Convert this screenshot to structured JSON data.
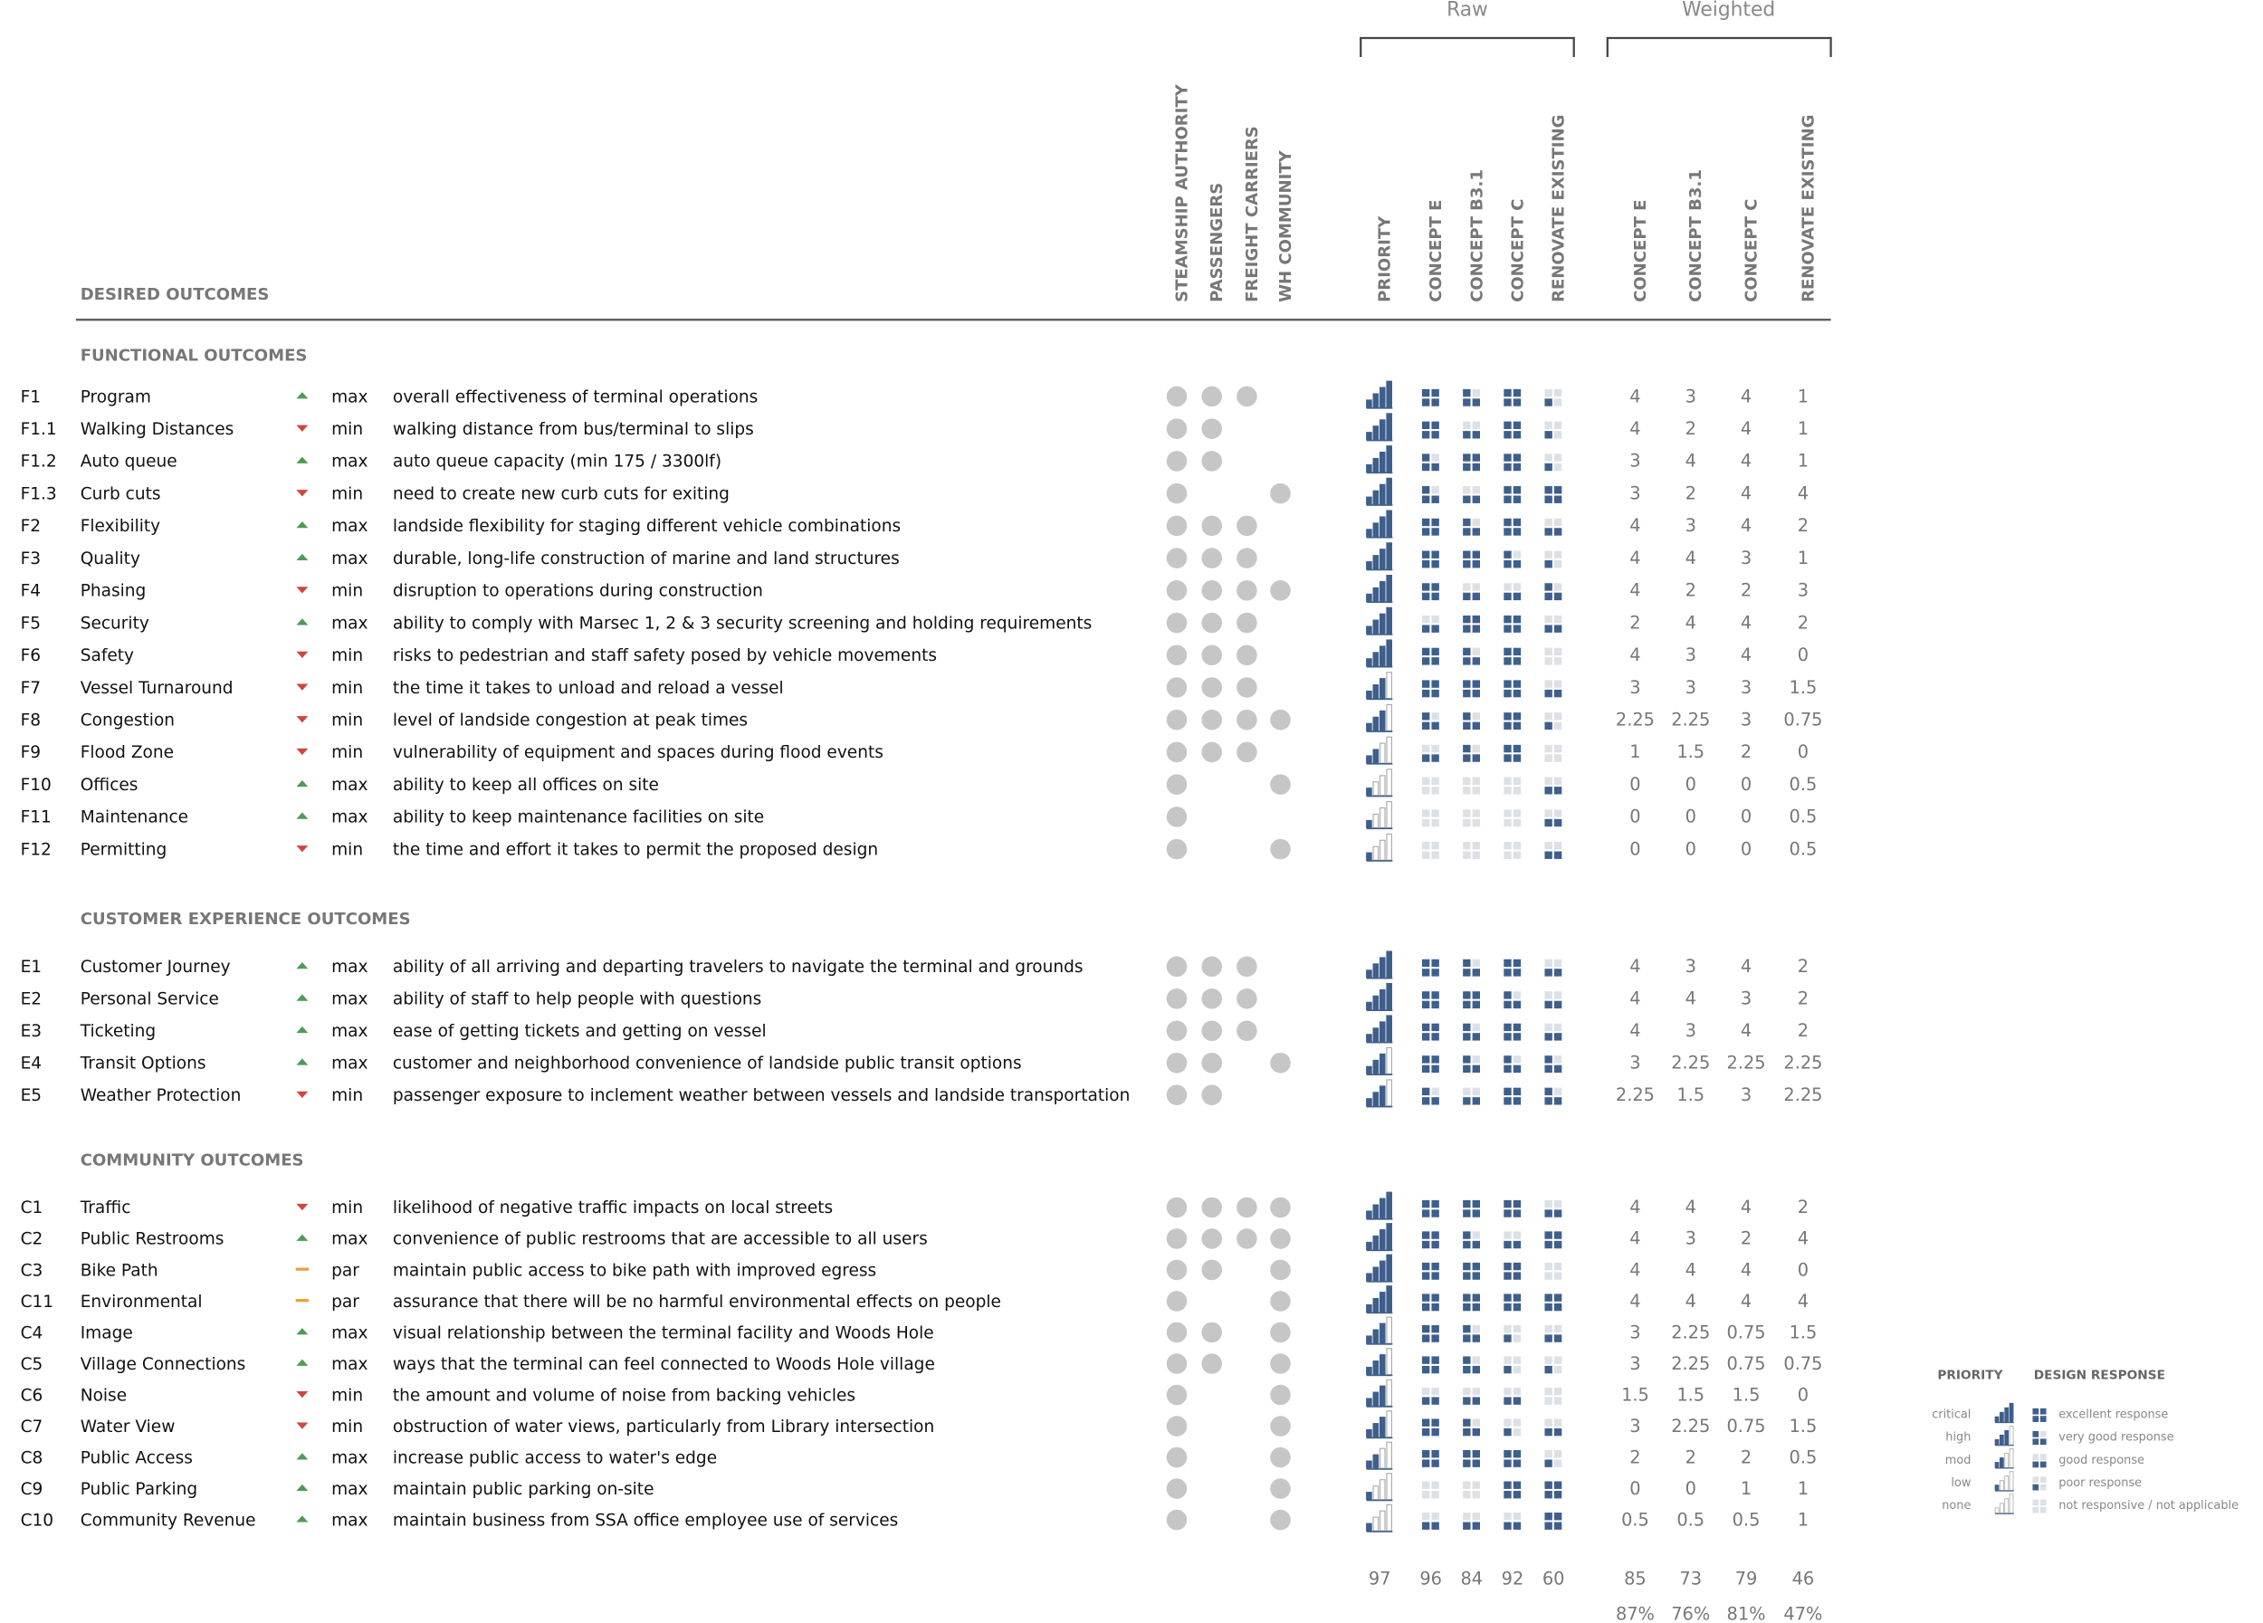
{
  "header": {
    "title": "DESIRED OUTCOMES",
    "raw_label": "Raw",
    "weighted_label": "Weighted",
    "stakeholders": [
      "STEAMSHIP AUTHORITY",
      "PASSENGERS",
      "FREIGHT CARRIERS",
      "WH COMMUNITY"
    ],
    "raw_columns": [
      "PRIORITY",
      "CONCEPT E",
      "CONCEPT B3.1",
      "CONCEPT C",
      "RENOVATE EXISTING"
    ],
    "weighted_columns": [
      "CONCEPT E",
      "CONCEPT B3.1",
      "CONCEPT C",
      "RENOVATE EXISTING"
    ]
  },
  "groups": [
    {
      "title": "FUNCTIONAL OUTCOMES",
      "rows": [
        {
          "id": "F1",
          "name": "Program",
          "arrow": "up",
          "direction": "max",
          "description": "overall effectiveness of terminal operations",
          "stakeholders": [
            true,
            true,
            true,
            false
          ],
          "priority": 4,
          "responses": [
            4,
            3,
            4,
            1
          ],
          "weighted": [
            4,
            3,
            4,
            1
          ]
        },
        {
          "id": "F1.1",
          "name": "Walking Distances",
          "arrow": "down",
          "direction": "min",
          "description": "walking distance from bus/terminal to slips",
          "stakeholders": [
            true,
            true,
            false,
            false
          ],
          "priority": 4,
          "responses": [
            4,
            2,
            4,
            1
          ],
          "weighted": [
            4,
            2,
            4,
            1
          ]
        },
        {
          "id": "F1.2",
          "name": "Auto queue",
          "arrow": "up",
          "direction": "max",
          "description": "auto queue capacity (min 175 / 3300lf)",
          "stakeholders": [
            true,
            true,
            false,
            false
          ],
          "priority": 4,
          "responses": [
            3,
            4,
            4,
            1
          ],
          "weighted": [
            3,
            4,
            4,
            1
          ]
        },
        {
          "id": "F1.3",
          "name": "Curb cuts",
          "arrow": "down",
          "direction": "min",
          "description": "need to create new curb cuts for exiting",
          "stakeholders": [
            true,
            false,
            false,
            true
          ],
          "priority": 4,
          "responses": [
            3,
            2,
            4,
            4
          ],
          "weighted": [
            3,
            2,
            4,
            4
          ]
        },
        {
          "id": "F2",
          "name": "Flexibility",
          "arrow": "up",
          "direction": "max",
          "description": "landside flexibility for staging different vehicle combinations",
          "stakeholders": [
            true,
            true,
            true,
            false
          ],
          "priority": 4,
          "responses": [
            4,
            3,
            4,
            2
          ],
          "weighted": [
            4,
            3,
            4,
            2
          ]
        },
        {
          "id": "F3",
          "name": "Quality",
          "arrow": "up",
          "direction": "max",
          "description": "durable, long-life construction of marine and land structures",
          "stakeholders": [
            true,
            true,
            true,
            false
          ],
          "priority": 4,
          "responses": [
            4,
            4,
            3,
            1
          ],
          "weighted": [
            4,
            4,
            3,
            1
          ]
        },
        {
          "id": "F4",
          "name": "Phasing",
          "arrow": "down",
          "direction": "min",
          "description": "disruption to operations during construction",
          "stakeholders": [
            true,
            true,
            true,
            true
          ],
          "priority": 4,
          "responses": [
            4,
            2,
            2,
            3
          ],
          "weighted": [
            4,
            2,
            2,
            3
          ]
        },
        {
          "id": "F5",
          "name": "Security",
          "arrow": "up",
          "direction": "max",
          "description": "ability to comply with Marsec 1, 2 & 3 security screening and holding requirements",
          "stakeholders": [
            true,
            true,
            true,
            false
          ],
          "priority": 4,
          "responses": [
            2,
            4,
            4,
            2
          ],
          "weighted": [
            2,
            4,
            4,
            2
          ]
        },
        {
          "id": "F6",
          "name": "Safety",
          "arrow": "down",
          "direction": "min",
          "description": "risks to pedestrian and staff safety posed by vehicle movements",
          "stakeholders": [
            true,
            true,
            true,
            false
          ],
          "priority": 4,
          "responses": [
            4,
            3,
            4,
            0
          ],
          "weighted": [
            4,
            3,
            4,
            0
          ]
        },
        {
          "id": "F7",
          "name": "Vessel Turnaround",
          "arrow": "down",
          "direction": "min",
          "description": "the time it takes to unload and reload a vessel",
          "stakeholders": [
            true,
            true,
            true,
            false
          ],
          "priority": 3,
          "responses": [
            4,
            4,
            4,
            2
          ],
          "weighted": [
            3,
            3,
            3,
            1.5
          ]
        },
        {
          "id": "F8",
          "name": "Congestion",
          "arrow": "down",
          "direction": "min",
          "description": "level of landside congestion at peak times",
          "stakeholders": [
            true,
            true,
            true,
            true
          ],
          "priority": 3,
          "responses": [
            3,
            3,
            4,
            1
          ],
          "weighted": [
            2.25,
            2.25,
            3,
            0.75
          ]
        },
        {
          "id": "F9",
          "name": "Flood Zone",
          "arrow": "down",
          "direction": "min",
          "description": "vulnerability of equipment and spaces during flood events",
          "stakeholders": [
            true,
            true,
            true,
            false
          ],
          "priority": 2,
          "responses": [
            2,
            3,
            4,
            0
          ],
          "weighted": [
            1,
            1.5,
            2,
            0
          ]
        },
        {
          "id": "F10",
          "name": "Offices",
          "arrow": "up",
          "direction": "max",
          "description": "ability to keep all offices on site",
          "stakeholders": [
            true,
            false,
            false,
            true
          ],
          "priority": 1,
          "responses": [
            0,
            0,
            0,
            2
          ],
          "weighted": [
            0,
            0,
            0,
            0.5
          ]
        },
        {
          "id": "F11",
          "name": "Maintenance",
          "arrow": "up",
          "direction": "max",
          "description": "ability to keep maintenance facilities on site",
          "stakeholders": [
            true,
            false,
            false,
            false
          ],
          "priority": 1,
          "responses": [
            0,
            0,
            0,
            2
          ],
          "weighted": [
            0,
            0,
            0,
            0.5
          ]
        },
        {
          "id": "F12",
          "name": "Permitting",
          "arrow": "down",
          "direction": "min",
          "description": "the time and effort it takes to permit the proposed design",
          "stakeholders": [
            true,
            false,
            false,
            true
          ],
          "priority": 1,
          "responses": [
            0,
            0,
            0,
            2
          ],
          "weighted": [
            0,
            0,
            0,
            0.5
          ]
        }
      ]
    },
    {
      "title": "CUSTOMER EXPERIENCE OUTCOMES",
      "rows": [
        {
          "id": "E1",
          "name": "Customer Journey",
          "arrow": "up",
          "direction": "max",
          "description": "ability of all arriving and departing travelers to navigate the terminal and grounds",
          "stakeholders": [
            true,
            true,
            true,
            false
          ],
          "priority": 4,
          "responses": [
            4,
            3,
            4,
            2
          ],
          "weighted": [
            4,
            3,
            4,
            2
          ]
        },
        {
          "id": "E2",
          "name": "Personal Service",
          "arrow": "up",
          "direction": "max",
          "description": "ability of staff to help people with questions",
          "stakeholders": [
            true,
            true,
            true,
            false
          ],
          "priority": 4,
          "responses": [
            4,
            4,
            3,
            2
          ],
          "weighted": [
            4,
            4,
            3,
            2
          ]
        },
        {
          "id": "E3",
          "name": "Ticketing",
          "arrow": "up",
          "direction": "max",
          "description": "ease of getting tickets and getting on vessel",
          "stakeholders": [
            true,
            true,
            true,
            false
          ],
          "priority": 4,
          "responses": [
            4,
            3,
            4,
            2
          ],
          "weighted": [
            4,
            3,
            4,
            2
          ]
        },
        {
          "id": "E4",
          "name": "Transit Options",
          "arrow": "up",
          "direction": "max",
          "description": "customer and neighborhood convenience of landside public transit options",
          "stakeholders": [
            true,
            true,
            false,
            true
          ],
          "priority": 3,
          "responses": [
            4,
            3,
            3,
            3
          ],
          "weighted": [
            3,
            2.25,
            2.25,
            2.25
          ]
        },
        {
          "id": "E5",
          "name": "Weather Protection",
          "arrow": "down",
          "direction": "min",
          "description": "passenger exposure to inclement weather between vessels and landside transportation",
          "stakeholders": [
            true,
            true,
            false,
            false
          ],
          "priority": 3,
          "responses": [
            3,
            2,
            4,
            3
          ],
          "weighted": [
            2.25,
            1.5,
            3,
            2.25
          ]
        }
      ]
    },
    {
      "title": "COMMUNITY OUTCOMES",
      "rows": [
        {
          "id": "C1",
          "name": "Traffic",
          "arrow": "down",
          "direction": "min",
          "description": "likelihood of negative traffic impacts on local streets",
          "stakeholders": [
            true,
            true,
            true,
            true
          ],
          "priority": 4,
          "responses": [
            4,
            4,
            4,
            2
          ],
          "weighted": [
            4,
            4,
            4,
            2
          ]
        },
        {
          "id": "C2",
          "name": "Public Restrooms",
          "arrow": "up",
          "direction": "max",
          "description": "convenience of public restrooms that are accessible to all users",
          "stakeholders": [
            true,
            true,
            true,
            true
          ],
          "priority": 4,
          "responses": [
            4,
            3,
            2,
            4
          ],
          "weighted": [
            4,
            3,
            2,
            4
          ]
        },
        {
          "id": "C3",
          "name": "Bike Path",
          "arrow": "flat",
          "direction": "par",
          "description": "maintain public access to bike path with improved egress",
          "stakeholders": [
            true,
            true,
            false,
            true
          ],
          "priority": 4,
          "responses": [
            4,
            4,
            4,
            0
          ],
          "weighted": [
            4,
            4,
            4,
            0
          ]
        },
        {
          "id": "C11",
          "name": "Environmental",
          "arrow": "flat",
          "direction": "par",
          "description": "assurance that there will be no harmful environmental effects on people",
          "stakeholders": [
            true,
            false,
            false,
            true
          ],
          "priority": 4,
          "responses": [
            4,
            4,
            4,
            4
          ],
          "weighted": [
            4,
            4,
            4,
            4
          ]
        },
        {
          "id": "C4",
          "name": "Image",
          "arrow": "up",
          "direction": "max",
          "description": "visual relationship between the terminal facility and Woods Hole",
          "stakeholders": [
            true,
            true,
            false,
            true
          ],
          "priority": 3,
          "responses": [
            4,
            3,
            1,
            2
          ],
          "weighted": [
            3,
            2.25,
            0.75,
            1.5
          ]
        },
        {
          "id": "C5",
          "name": "Village Connections",
          "arrow": "up",
          "direction": "max",
          "description": "ways that the terminal can feel connected to Woods Hole village",
          "stakeholders": [
            true,
            true,
            false,
            true
          ],
          "priority": 3,
          "responses": [
            4,
            3,
            1,
            1
          ],
          "weighted": [
            3,
            2.25,
            0.75,
            0.75
          ]
        },
        {
          "id": "C6",
          "name": "Noise",
          "arrow": "down",
          "direction": "min",
          "description": "the amount and volume of noise from backing vehicles",
          "stakeholders": [
            true,
            false,
            false,
            true
          ],
          "priority": 3,
          "responses": [
            2,
            2,
            2,
            0
          ],
          "weighted": [
            1.5,
            1.5,
            1.5,
            0
          ]
        },
        {
          "id": "C7",
          "name": "Water View",
          "arrow": "down",
          "direction": "min",
          "description": "obstruction of water views, particularly from Library intersection",
          "stakeholders": [
            true,
            false,
            false,
            true
          ],
          "priority": 3,
          "responses": [
            4,
            3,
            1,
            2
          ],
          "weighted": [
            3,
            2.25,
            0.75,
            1.5
          ]
        },
        {
          "id": "C8",
          "name": "Public Access",
          "arrow": "up",
          "direction": "max",
          "description": "increase public access to water's edge",
          "stakeholders": [
            true,
            false,
            false,
            true
          ],
          "priority": 2,
          "responses": [
            4,
            4,
            4,
            1
          ],
          "weighted": [
            2,
            2,
            2,
            0.5
          ]
        },
        {
          "id": "C9",
          "name": "Public Parking",
          "arrow": "up",
          "direction": "max",
          "description": "maintain public parking on-site",
          "stakeholders": [
            true,
            false,
            false,
            true
          ],
          "priority": 1,
          "responses": [
            0,
            0,
            4,
            4
          ],
          "weighted": [
            0,
            0,
            1,
            1
          ]
        },
        {
          "id": "C10",
          "name": "Community Revenue",
          "arrow": "up",
          "direction": "max",
          "description": "maintain business from SSA office employee use of services",
          "stakeholders": [
            true,
            false,
            false,
            true
          ],
          "priority": 1,
          "responses": [
            2,
            2,
            2,
            4
          ],
          "weighted": [
            0.5,
            0.5,
            0.5,
            1
          ]
        }
      ]
    }
  ],
  "totals": {
    "priority": 97,
    "raw": [
      96,
      84,
      92,
      60
    ],
    "weighted": [
      85,
      73,
      79,
      46
    ],
    "percent": {
      "values": [
        87,
        76,
        81,
        47
      ],
      "value_labels": [
        "87%",
        "76%",
        "81%",
        "47%"
      ]
    }
  },
  "legend": {
    "priority_title": "PRIORITY",
    "response_title": "DESIGN RESPONSE",
    "priority_levels": [
      {
        "label": "critical",
        "level": 4
      },
      {
        "label": "high",
        "level": 3
      },
      {
        "label": "mod",
        "level": 2
      },
      {
        "label": "low",
        "level": 1
      },
      {
        "label": "none",
        "level": 0
      }
    ],
    "response_levels": [
      {
        "label": "excellent response",
        "level": 4
      },
      {
        "label": "very good response",
        "level": 3
      },
      {
        "label": "good response",
        "level": 2
      },
      {
        "label": "poor response",
        "level": 1
      },
      {
        "label": "not responsive / not applicable",
        "level": 0
      }
    ]
  },
  "colors": {
    "dark": "#3f5f8b",
    "light": "#dde1e6",
    "dot": "#c6c6c6",
    "up": "#4f9a59",
    "down": "#d0453f",
    "flat": "#e6a23a"
  }
}
